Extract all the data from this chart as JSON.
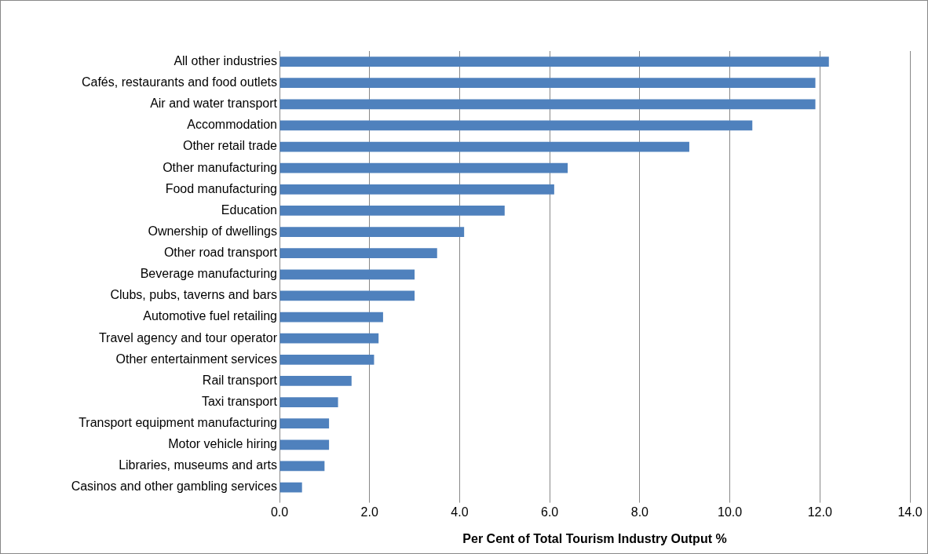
{
  "chart_data": {
    "type": "bar",
    "orientation": "horizontal",
    "xlabel": "Per Cent of Total Tourism Industry Output %",
    "categories": [
      "All other industries",
      "Cafés, restaurants and food outlets",
      "Air and water transport",
      "Accommodation",
      "Other retail trade",
      "Other manufacturing",
      "Food manufacturing",
      "Education",
      "Ownership of dwellings",
      "Other road transport",
      "Beverage manufacturing",
      "Clubs, pubs, taverns and bars",
      "Automotive fuel retailing",
      "Travel agency and tour operator",
      "Other entertainment services",
      "Rail transport",
      "Taxi transport",
      "Transport equipment manufacturing",
      "Motor vehicle hiring",
      "Libraries, museums and arts",
      "Casinos and other gambling services"
    ],
    "values": [
      12.2,
      11.9,
      11.9,
      10.5,
      9.1,
      6.4,
      6.1,
      5.0,
      4.1,
      3.5,
      3.0,
      3.0,
      2.3,
      2.2,
      2.1,
      1.6,
      1.3,
      1.1,
      1.1,
      1.0,
      0.5
    ],
    "color": "#4f81bd",
    "xlim": [
      0,
      14
    ],
    "xticks": [
      {
        "value": 0,
        "label": "0.0"
      },
      {
        "value": 2,
        "label": "2.0"
      },
      {
        "value": 4,
        "label": "4.0"
      },
      {
        "value": 6,
        "label": "6.0"
      },
      {
        "value": 8,
        "label": "8.0"
      },
      {
        "value": 10,
        "label": "10.0"
      },
      {
        "value": 12,
        "label": "12.0"
      },
      {
        "value": 14,
        "label": "14.0"
      }
    ],
    "grid": "x"
  }
}
